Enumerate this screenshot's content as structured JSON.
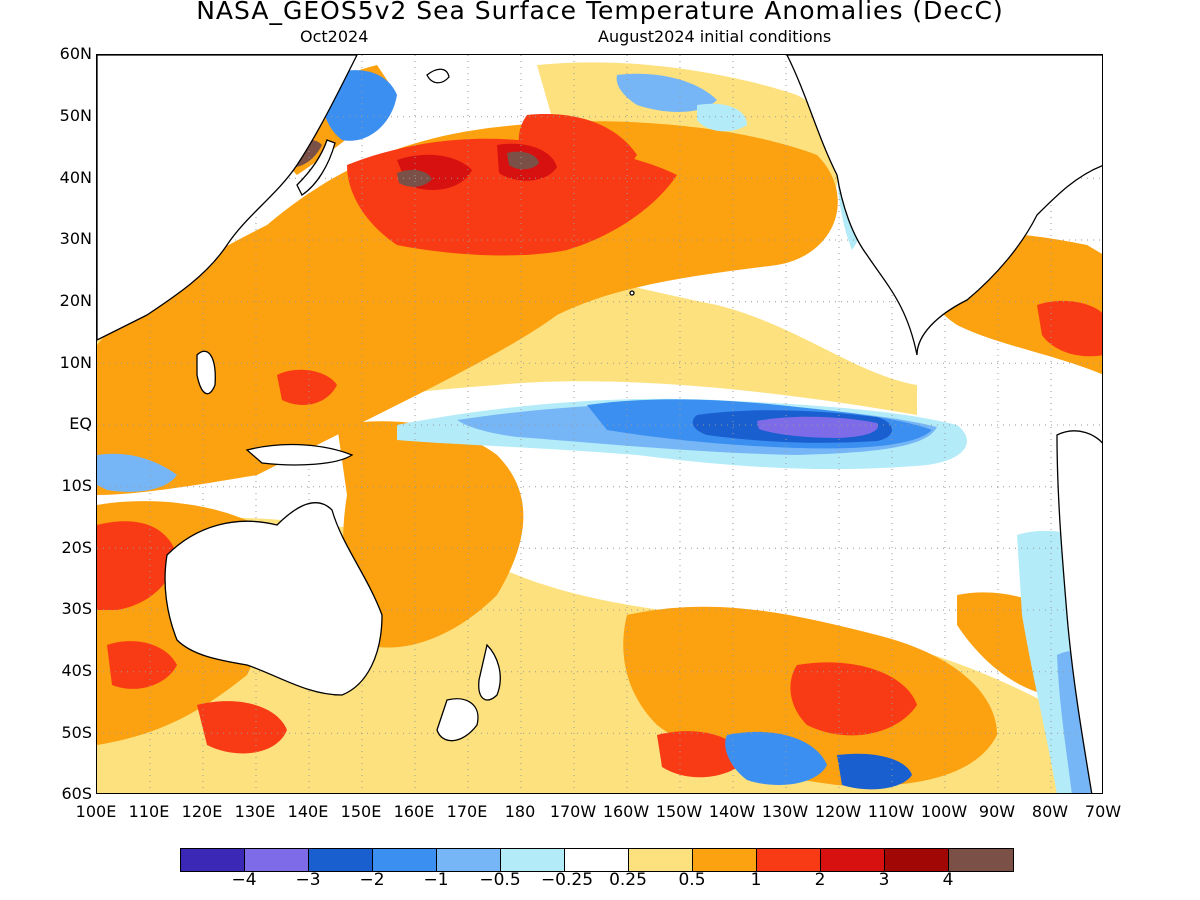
{
  "header": {
    "title": "NASA_GEOS5v2 Sea Surface Temperature Anomalies (DecC)",
    "forecast_month": "Oct2024",
    "initial_conditions": "August2024 initial conditions"
  },
  "axes": {
    "lat_labels": [
      "60N",
      "50N",
      "40N",
      "30N",
      "20N",
      "10N",
      "EQ",
      "10S",
      "20S",
      "30S",
      "40S",
      "50S",
      "60S"
    ],
    "lon_labels": [
      "100E",
      "110E",
      "120E",
      "130E",
      "140E",
      "150E",
      "160E",
      "170E",
      "180",
      "170W",
      "160W",
      "150W",
      "140W",
      "130W",
      "120W",
      "110W",
      "100W",
      "90W",
      "80W",
      "70W"
    ]
  },
  "colorbar": {
    "colors": [
      "#3b28b7",
      "#7d6be8",
      "#1a5fd0",
      "#3a8ff0",
      "#77b6f6",
      "#b3ecf8",
      "#ffffff",
      "#fde17e",
      "#fca10f",
      "#f93b15",
      "#d71010",
      "#a10705",
      "#7a5047"
    ],
    "labels": [
      "−4",
      "−3",
      "−2",
      "−1",
      "−0.5",
      "−0.25",
      "0.25",
      "0.5",
      "1",
      "2",
      "3",
      "4"
    ]
  }
}
